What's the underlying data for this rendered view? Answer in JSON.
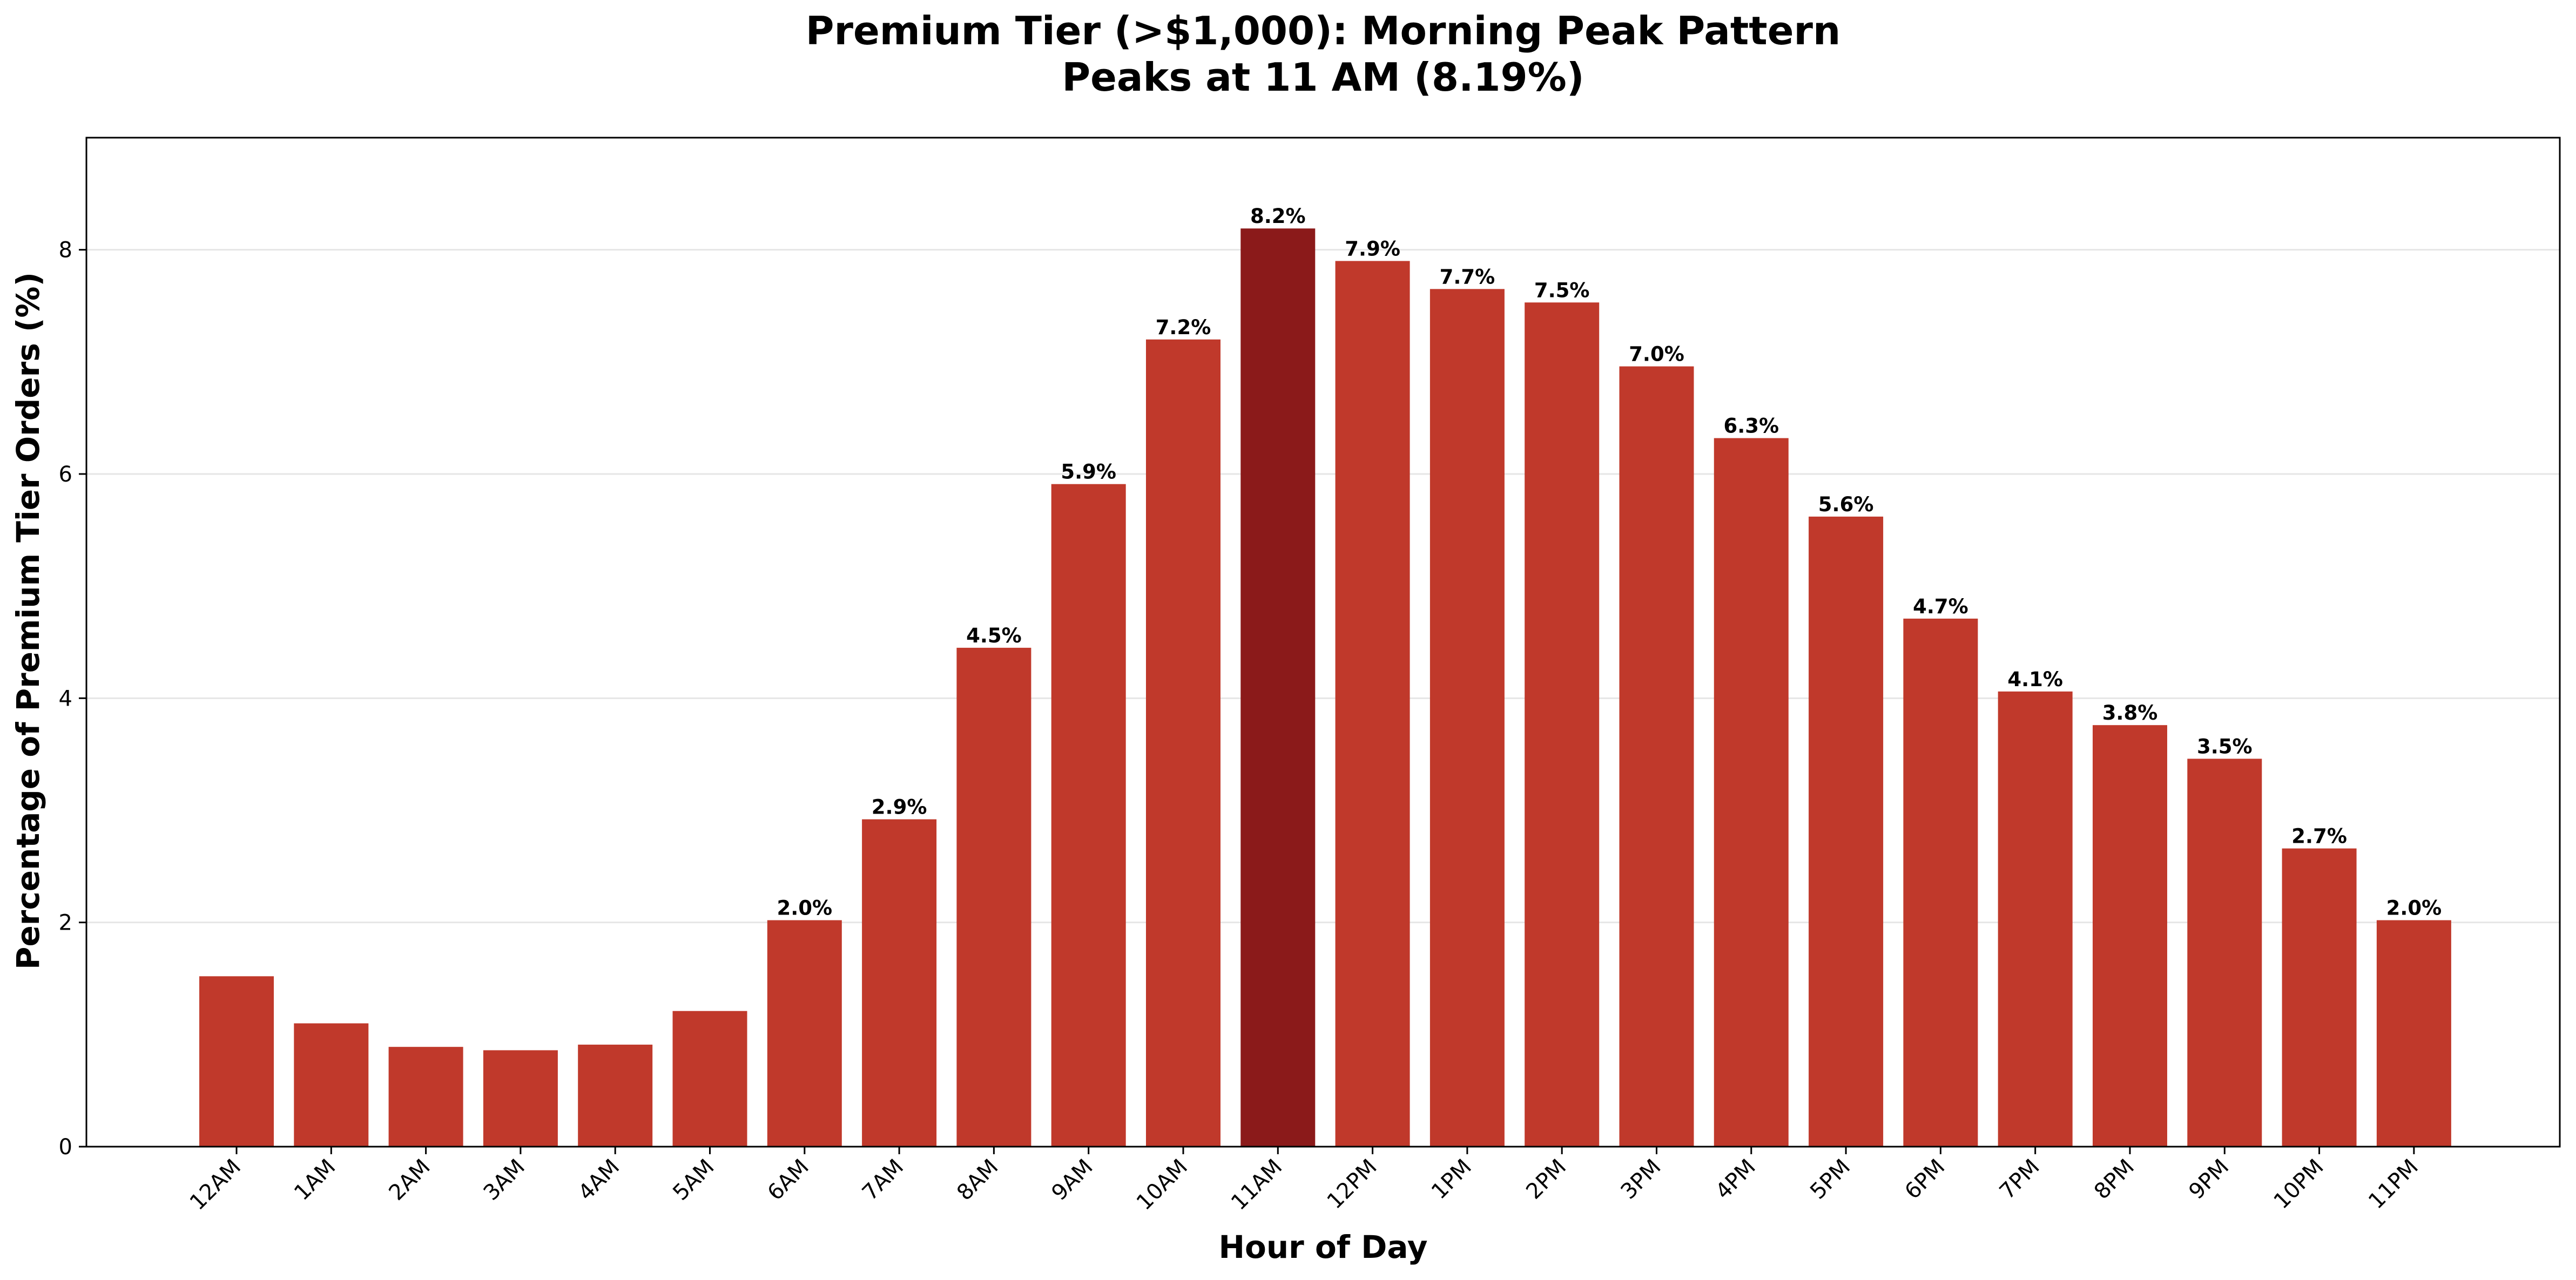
{
  "chart_data": {
    "type": "bar",
    "title": "Premium Tier (>$1,000): Morning Peak Pattern",
    "subtitle": "Peaks at 11 AM (8.19%)",
    "xlabel": "Hour of Day",
    "ylabel": "Percentage of Premium Tier Orders (%)",
    "ylim": [
      0,
      9
    ],
    "yticks": [
      0,
      2,
      4,
      6,
      8
    ],
    "grid": "horizontal",
    "categories": [
      "12AM",
      "1AM",
      "2AM",
      "3AM",
      "4AM",
      "5AM",
      "6AM",
      "7AM",
      "8AM",
      "9AM",
      "10AM",
      "11AM",
      "12PM",
      "1PM",
      "2PM",
      "3PM",
      "4PM",
      "5PM",
      "6PM",
      "7PM",
      "8PM",
      "9PM",
      "10PM",
      "11PM"
    ],
    "values": [
      1.52,
      1.1,
      0.89,
      0.86,
      0.91,
      1.21,
      2.02,
      2.92,
      4.45,
      5.91,
      7.2,
      8.19,
      7.9,
      7.65,
      7.53,
      6.96,
      6.32,
      5.62,
      4.71,
      4.06,
      3.76,
      3.46,
      2.66,
      2.02
    ],
    "data_labels": [
      "",
      "",
      "",
      "",
      "",
      "",
      "2.0%",
      "2.9%",
      "4.5%",
      "5.9%",
      "7.2%",
      "8.2%",
      "7.9%",
      "7.7%",
      "7.5%",
      "7.0%",
      "6.3%",
      "5.6%",
      "4.7%",
      "4.1%",
      "3.8%",
      "3.5%",
      "2.7%",
      "2.0%"
    ],
    "highlight_index": 11,
    "colors": {
      "bar": "#c0392b",
      "highlight": "#8b1a1a",
      "grid": "#e6e6e6"
    }
  }
}
